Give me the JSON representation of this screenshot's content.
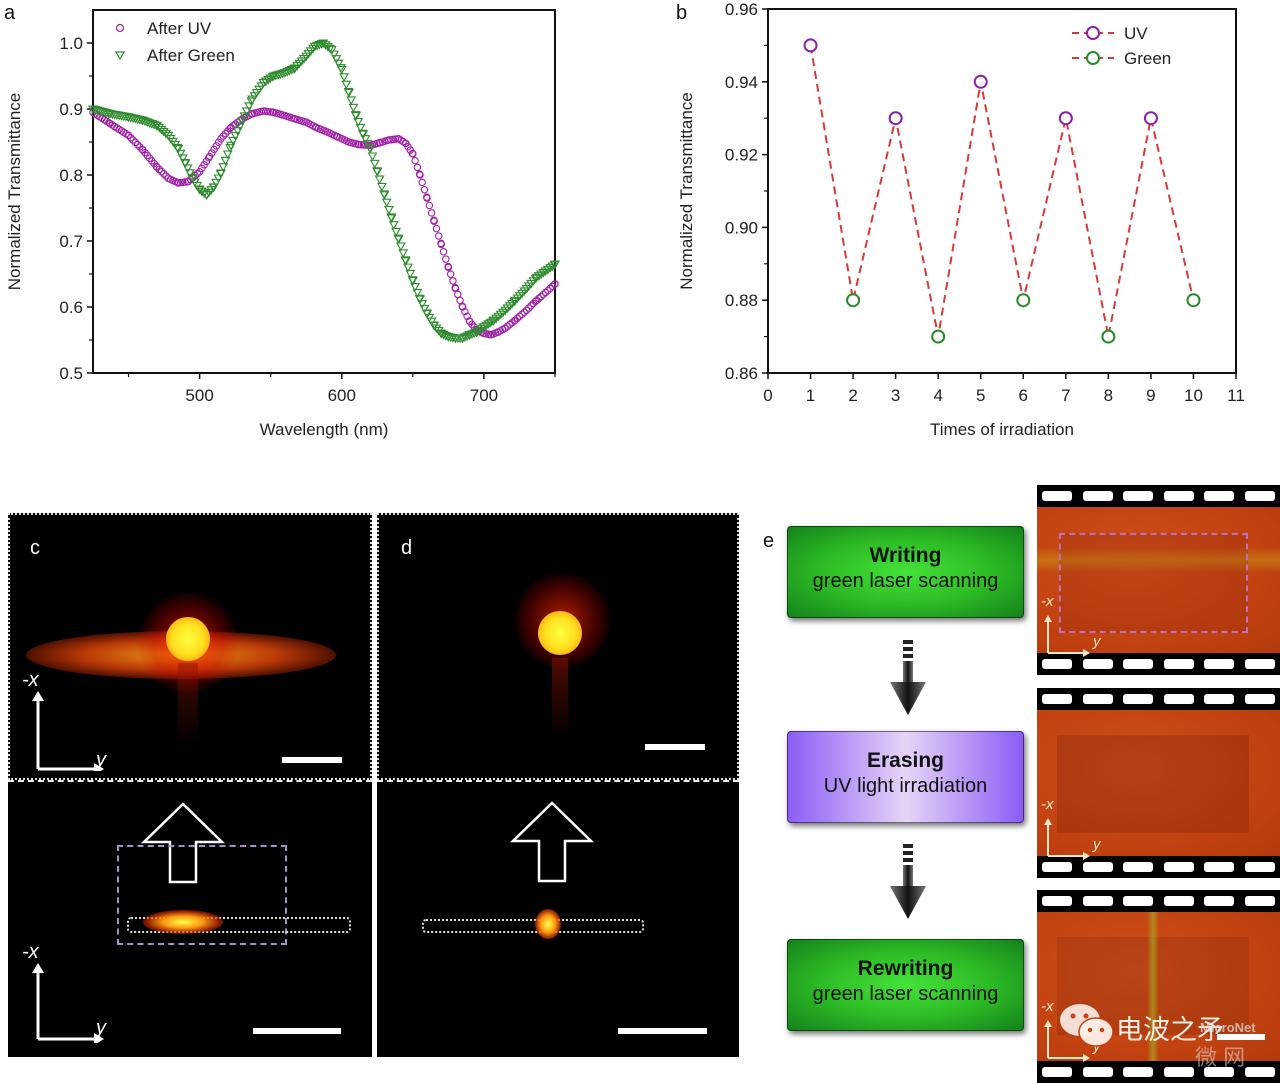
{
  "panels": {
    "a": "a",
    "b": "b",
    "c": "c",
    "d": "d",
    "e": "e"
  },
  "colors": {
    "uv": "#a020a8",
    "green": "#2e8b2e",
    "dash": "#d63a3a",
    "b_uv_marker": "#8a1fa8",
    "b_green_marker": "#2a8a2a"
  },
  "chart_data": [
    {
      "id": "a",
      "type": "scatter",
      "title": "",
      "xlabel": "Wavelength (nm)",
      "ylabel": "Normalized Transmittance",
      "xlim": [
        425,
        750
      ],
      "ylim": [
        0.5,
        1.05
      ],
      "xticks": [
        500,
        600,
        700
      ],
      "xtick_labels": [
        "500",
        "600",
        "700"
      ],
      "yticks": [
        0.5,
        0.6,
        0.7,
        0.8,
        0.9,
        1.0
      ],
      "ytick_labels": [
        "0.5",
        "0.6",
        "0.7",
        "0.8",
        "0.9",
        "1.0"
      ],
      "legend": "top-left",
      "grid": false,
      "series": [
        {
          "name": "After UV",
          "marker": "circle",
          "x": [
            425,
            437,
            450,
            460,
            470,
            478,
            485,
            492,
            500,
            507,
            515,
            522,
            530,
            537,
            545,
            552,
            560,
            567,
            575,
            582,
            590,
            597,
            605,
            612,
            620,
            627,
            633,
            640,
            645,
            650,
            655,
            660,
            665,
            670,
            675,
            680,
            685,
            690,
            695,
            700,
            705,
            710,
            715,
            722,
            730,
            737,
            745,
            750
          ],
          "y": [
            0.895,
            0.878,
            0.86,
            0.838,
            0.812,
            0.795,
            0.788,
            0.79,
            0.805,
            0.828,
            0.855,
            0.872,
            0.885,
            0.893,
            0.897,
            0.895,
            0.89,
            0.885,
            0.88,
            0.872,
            0.865,
            0.858,
            0.85,
            0.846,
            0.845,
            0.849,
            0.853,
            0.855,
            0.848,
            0.832,
            0.8,
            0.765,
            0.73,
            0.695,
            0.66,
            0.628,
            0.6,
            0.578,
            0.565,
            0.56,
            0.558,
            0.562,
            0.568,
            0.58,
            0.595,
            0.61,
            0.625,
            0.635
          ]
        },
        {
          "name": "After Green",
          "marker": "triangle-down",
          "x": [
            425,
            437,
            450,
            460,
            470,
            478,
            485,
            490,
            495,
            500,
            505,
            510,
            515,
            522,
            530,
            537,
            545,
            552,
            560,
            567,
            575,
            581,
            587,
            593,
            600,
            605,
            610,
            615,
            620,
            625,
            630,
            635,
            640,
            645,
            650,
            655,
            660,
            665,
            670,
            675,
            680,
            685,
            690,
            695,
            700,
            707,
            715,
            722,
            730,
            737,
            745,
            750
          ],
          "y": [
            0.9,
            0.893,
            0.888,
            0.883,
            0.875,
            0.86,
            0.84,
            0.818,
            0.795,
            0.778,
            0.77,
            0.782,
            0.803,
            0.845,
            0.882,
            0.915,
            0.94,
            0.95,
            0.955,
            0.962,
            0.98,
            0.995,
            1.0,
            0.99,
            0.96,
            0.925,
            0.89,
            0.862,
            0.84,
            0.805,
            0.77,
            0.735,
            0.703,
            0.67,
            0.64,
            0.612,
            0.59,
            0.572,
            0.56,
            0.555,
            0.553,
            0.553,
            0.558,
            0.562,
            0.57,
            0.58,
            0.595,
            0.61,
            0.628,
            0.645,
            0.657,
            0.665
          ]
        }
      ]
    },
    {
      "id": "b",
      "type": "line",
      "title": "",
      "xlabel": "Times of irradiation",
      "ylabel": "Normalized Transmittance",
      "xlim": [
        0,
        11
      ],
      "ylim": [
        0.86,
        0.96
      ],
      "xticks": [
        0,
        1,
        2,
        3,
        4,
        5,
        6,
        7,
        8,
        9,
        10,
        11
      ],
      "xtick_labels": [
        "0",
        "1",
        "2",
        "3",
        "4",
        "5",
        "6",
        "7",
        "8",
        "9",
        "10",
        "11"
      ],
      "yticks": [
        0.86,
        0.88,
        0.9,
        0.92,
        0.94,
        0.96
      ],
      "ytick_labels": [
        "0.86",
        "0.88",
        "0.90",
        "0.92",
        "0.94",
        "0.96"
      ],
      "legend": "top-right",
      "grid": false,
      "line_style": "dashed",
      "x": [
        1,
        2,
        3,
        4,
        5,
        6,
        7,
        8,
        9,
        10
      ],
      "y": [
        0.95,
        0.88,
        0.93,
        0.87,
        0.94,
        0.88,
        0.93,
        0.87,
        0.93,
        0.88
      ],
      "series": [
        {
          "name": "UV",
          "x": [
            1,
            3,
            5,
            7,
            9
          ],
          "y": [
            0.95,
            0.93,
            0.94,
            0.93,
            0.93
          ]
        },
        {
          "name": "Green",
          "x": [
            2,
            4,
            6,
            8,
            10
          ],
          "y": [
            0.88,
            0.87,
            0.88,
            0.87,
            0.88
          ]
        }
      ]
    }
  ],
  "panel_c": {
    "axis_neg_x": "-x",
    "axis_y": "y"
  },
  "panel_d": {},
  "panel_e": {
    "steps": [
      {
        "title": "Writing",
        "subtitle": "green laser scanning"
      },
      {
        "title": "Erasing",
        "subtitle": "UV light irradiation"
      },
      {
        "title": "Rewriting",
        "subtitle": "green laser scanning"
      }
    ],
    "axis_neg_x": "-x",
    "axis_y": "y"
  },
  "watermark": {
    "text": "电波之矛",
    "brand": "MicroNet",
    "brand_cn": "微 网"
  }
}
